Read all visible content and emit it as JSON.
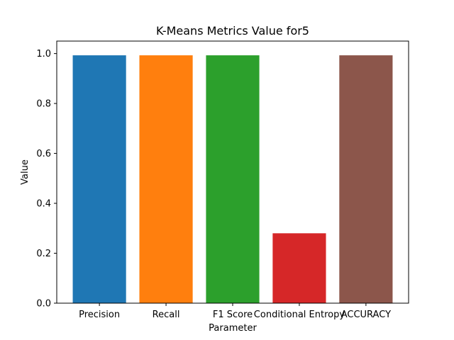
{
  "chart_data": {
    "type": "bar",
    "title": "K-Means Metrics Value for5",
    "xlabel": "Parameter",
    "ylabel": "Value",
    "categories": [
      "Precision",
      "Recall",
      "F1 Score",
      "Conditional Entropy",
      "ACCURACY"
    ],
    "values": [
      0.993,
      0.993,
      0.993,
      0.28,
      0.993
    ],
    "colors": [
      "#1f77b4",
      "#ff7f0e",
      "#2ca02c",
      "#d62728",
      "#8c564b"
    ],
    "ylim": [
      0,
      1.05
    ],
    "yticks": [
      0.0,
      0.2,
      0.4,
      0.6,
      0.8,
      1.0
    ],
    "ytick_labels": [
      "0.0",
      "0.2",
      "0.4",
      "0.6",
      "0.8",
      "1.0"
    ],
    "grid": false,
    "legend": "none"
  }
}
